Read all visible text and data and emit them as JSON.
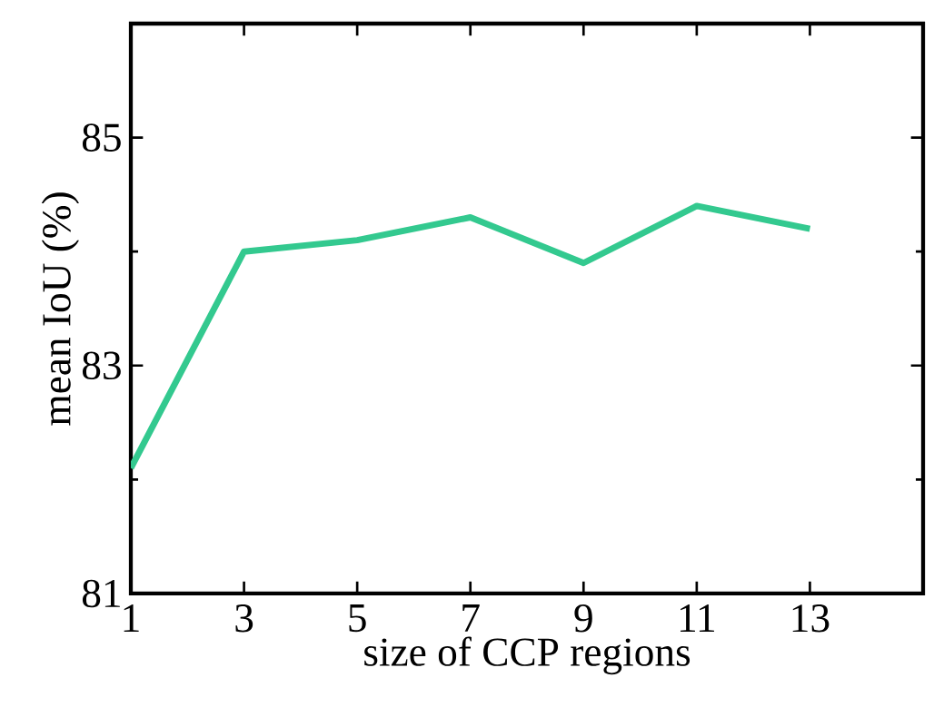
{
  "chart_data": {
    "type": "line",
    "xlabel": "size of CCP regions",
    "ylabel": "mean IoU (%)",
    "x": [
      1,
      3,
      5,
      7,
      9,
      11,
      13
    ],
    "series": [
      {
        "color": "#33c98f",
        "values": [
          82.1,
          84.0,
          84.1,
          84.3,
          83.9,
          84.4,
          84.2
        ]
      }
    ],
    "xlim": [
      1,
      15
    ],
    "ylim": [
      81,
      86
    ],
    "xticks": [
      1,
      3,
      5,
      7,
      9,
      11,
      13
    ],
    "yticks": [
      81,
      83,
      85
    ],
    "marker": "none",
    "line_style": "solid"
  }
}
